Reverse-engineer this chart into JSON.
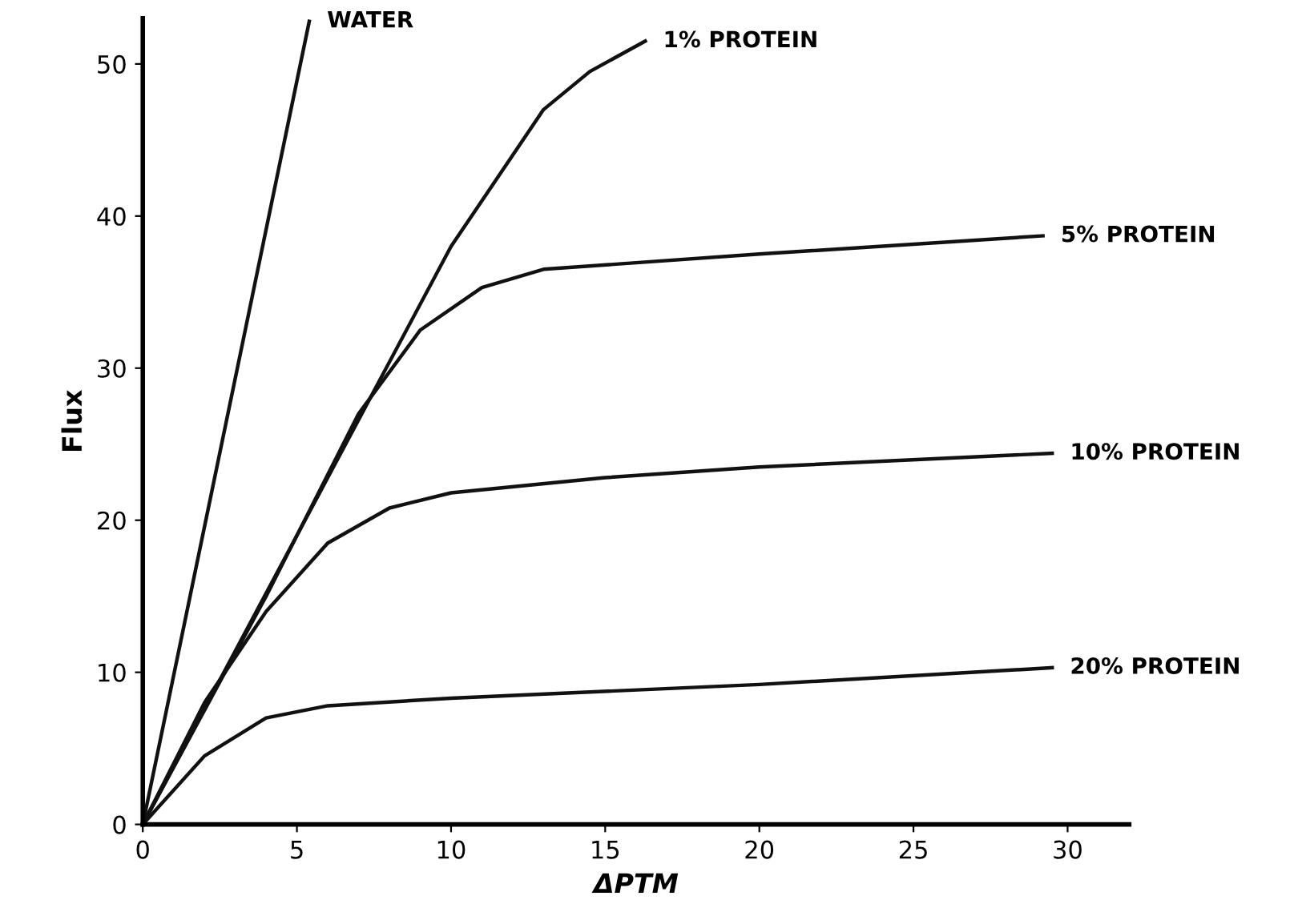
{
  "chart_data": {
    "type": "line",
    "xlabel": "ΔPTM",
    "ylabel": "Flux",
    "xlim": [
      0,
      32
    ],
    "ylim": [
      0,
      53
    ],
    "xticks": [
      0,
      5,
      10,
      15,
      20,
      25,
      30
    ],
    "yticks": [
      0,
      10,
      20,
      30,
      40,
      50
    ],
    "grid": false,
    "legend": false,
    "marker": "none",
    "line_style": "solid",
    "series": [
      {
        "name": "WATER",
        "color": "#111111",
        "x": [
          0,
          5.4
        ],
        "values": [
          0,
          52.8
        ]
      },
      {
        "name": "1% PROTEIN",
        "color": "#111111",
        "x": [
          0,
          5,
          10,
          13,
          14.5,
          16.3
        ],
        "values": [
          0,
          19,
          38,
          47,
          49.5,
          51.5
        ]
      },
      {
        "name": "5% PROTEIN",
        "color": "#111111",
        "x": [
          0,
          4,
          7,
          9,
          11,
          13,
          20,
          29.2
        ],
        "values": [
          0,
          15,
          27,
          32.5,
          35.3,
          36.5,
          37.5,
          38.7
        ]
      },
      {
        "name": "10% PROTEIN",
        "color": "#111111",
        "x": [
          0,
          2,
          4,
          6,
          8,
          10,
          15,
          20,
          29.5
        ],
        "values": [
          0,
          8,
          14,
          18.5,
          20.8,
          21.8,
          22.8,
          23.5,
          24.4
        ]
      },
      {
        "name": "20% PROTEIN",
        "color": "#111111",
        "x": [
          0,
          2,
          4,
          6,
          10,
          20,
          29.5
        ],
        "values": [
          0,
          4.5,
          7,
          7.8,
          8.3,
          9.2,
          10.3
        ]
      }
    ]
  }
}
